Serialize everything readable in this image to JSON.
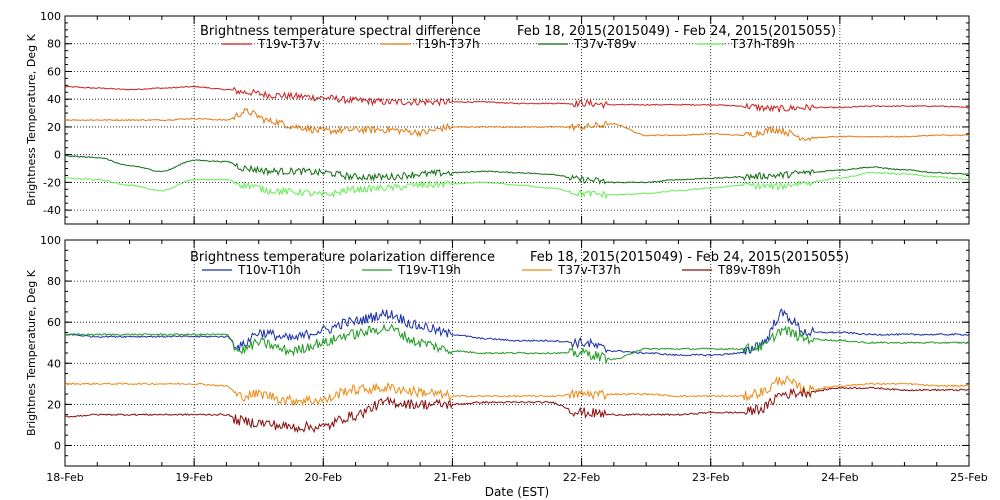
{
  "colors": {
    "T19v-T37v": "#cc1f1f",
    "T19h-T37h": "#e07a10",
    "T37v-T89v": "#0f6e12",
    "T37h-T89h": "#66ee55",
    "T10v-T10h": "#1a2fa8",
    "T19v-T19h": "#1e9a22",
    "T37v-T37h": "#ee8a15",
    "T89v-T89h": "#8a0f0f"
  },
  "xaxis": {
    "label": "Date (EST)",
    "ticks": [
      "18-Feb",
      "19-Feb",
      "20-Feb",
      "21-Feb",
      "22-Feb",
      "23-Feb",
      "24-Feb",
      "25-Feb"
    ],
    "range_days": [
      0,
      7
    ]
  },
  "chart_data": [
    {
      "type": "line",
      "title": "Brightness temperature spectral difference",
      "date_range": "Feb 18, 2015(2015049) - Feb 24, 2015(2015055)",
      "ylabel": "Brightness Temperature, Deg K",
      "ylim": [
        -50,
        100
      ],
      "yticks": [
        -40,
        -20,
        0,
        20,
        40,
        60,
        80,
        100
      ],
      "grid": true,
      "legend_position": "top",
      "x_units": "days since 18-Feb",
      "x": [
        0,
        0.25,
        0.5,
        0.75,
        1.0,
        1.25,
        1.4,
        1.6,
        1.8,
        2.0,
        2.25,
        2.5,
        2.75,
        3.0,
        3.25,
        3.5,
        3.75,
        4.0,
        4.25,
        4.5,
        4.75,
        5.0,
        5.25,
        5.5,
        5.75,
        6.0,
        6.25,
        6.5,
        6.75,
        7.0
      ],
      "series": [
        {
          "name": "T19v-T37v",
          "values": [
            49,
            48,
            47,
            48,
            49,
            47,
            45,
            43,
            42,
            41,
            39,
            38,
            38,
            38,
            38,
            37,
            37,
            37,
            36,
            36,
            36,
            36,
            35,
            33,
            34,
            34,
            35,
            35,
            35,
            34
          ]
        },
        {
          "name": "T19h-T37h",
          "values": [
            25,
            25,
            25,
            25,
            26,
            25,
            31,
            24,
            20,
            17,
            18,
            18,
            16,
            20,
            20,
            20,
            20,
            20,
            22,
            14,
            14,
            15,
            14,
            18,
            12,
            13,
            13,
            13,
            14,
            14
          ]
        },
        {
          "name": "T37v-T89v",
          "values": [
            -1,
            -2,
            -8,
            -12,
            -4,
            -5,
            -10,
            -12,
            -12,
            -13,
            -16,
            -16,
            -14,
            -13,
            -12,
            -13,
            -14,
            -18,
            -20,
            -20,
            -18,
            -17,
            -16,
            -15,
            -13,
            -11,
            -9,
            -11,
            -13,
            -14
          ]
        },
        {
          "name": "T37h-T89h",
          "values": [
            -17,
            -18,
            -22,
            -26,
            -18,
            -18,
            -22,
            -26,
            -27,
            -29,
            -25,
            -24,
            -22,
            -21,
            -20,
            -22,
            -24,
            -28,
            -29,
            -28,
            -26,
            -24,
            -22,
            -23,
            -20,
            -17,
            -13,
            -14,
            -16,
            -18
          ]
        }
      ]
    },
    {
      "type": "line",
      "title": "Brightness temperature polarization difference",
      "date_range": "Feb 18, 2015(2015049) - Feb 24, 2015(2015055)",
      "ylabel": "Brightnes Temperature, Deg K",
      "ylim": [
        -10,
        100
      ],
      "yticks": [
        0,
        20,
        40,
        60,
        80,
        100
      ],
      "grid": true,
      "legend_position": "top",
      "x_units": "days since 18-Feb",
      "x": [
        0,
        0.25,
        0.5,
        0.75,
        1.0,
        1.25,
        1.35,
        1.5,
        1.75,
        2.0,
        2.2,
        2.5,
        2.75,
        3.0,
        3.25,
        3.5,
        3.75,
        4.0,
        4.25,
        4.5,
        4.75,
        5.0,
        5.25,
        5.4,
        5.55,
        5.75,
        6.0,
        6.25,
        6.5,
        6.75,
        7.0
      ],
      "series": [
        {
          "name": "T10v-T10h",
          "values": [
            54,
            53,
            53,
            53,
            53,
            53,
            48,
            55,
            52,
            56,
            60,
            64,
            58,
            54,
            52,
            51,
            51,
            50,
            46,
            45,
            44,
            44,
            45,
            50,
            64,
            55,
            55,
            54,
            54,
            54,
            54
          ]
        },
        {
          "name": "T19v-T19h",
          "values": [
            54,
            54,
            54,
            54,
            54,
            54,
            46,
            50,
            46,
            50,
            54,
            57,
            50,
            46,
            45,
            45,
            45,
            45,
            42,
            47,
            47,
            47,
            47,
            48,
            56,
            52,
            51,
            50,
            50,
            50,
            50
          ]
        },
        {
          "name": "T37v-T37h",
          "values": [
            30,
            30,
            30,
            30,
            30,
            29,
            24,
            25,
            22,
            22,
            27,
            28,
            26,
            24,
            24,
            24,
            24,
            25,
            25,
            25,
            24,
            24,
            24,
            26,
            32,
            27,
            29,
            30,
            30,
            29,
            29
          ]
        },
        {
          "name": "T89v-T89h",
          "values": [
            14,
            15,
            15,
            15,
            15,
            15,
            12,
            11,
            9,
            9,
            14,
            21,
            20,
            20,
            21,
            21,
            21,
            16,
            15,
            15,
            15,
            16,
            16,
            18,
            25,
            26,
            28,
            28,
            27,
            27,
            27
          ]
        }
      ]
    }
  ]
}
